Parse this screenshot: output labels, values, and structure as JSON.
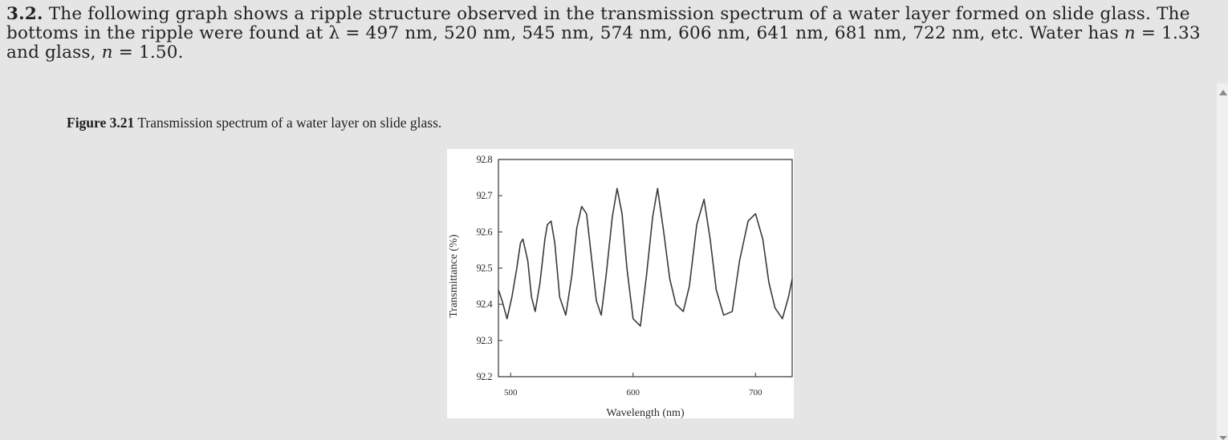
{
  "problem": {
    "number": "3.2.",
    "line1": " The following graph shows a ripple structure observed in the transmission spectrum of a water layer formed on slide glass. The",
    "line2a": "bottoms in the ripple were found at λ = 497 nm, 520 nm, 545 nm, 574 nm, 606 nm, 641 nm, 681 nm, 722 nm, etc. Water has ",
    "line2_var": "n",
    "line2b": " = 1.33",
    "line3a": "and glass, ",
    "line3_var": "n",
    "line3b": " = 1.50."
  },
  "caption": {
    "label": "Figure 3.21",
    "text": " Transmission spectrum of a water layer on slide glass."
  },
  "chart_data": {
    "type": "line",
    "xlabel": "Wavelength (nm)",
    "ylabel": "Transmittance (%)",
    "xlim": [
      490,
      730
    ],
    "ylim": [
      92.2,
      92.8
    ],
    "xticks": [
      "500",
      "600",
      "700"
    ],
    "xtick_values": [
      500,
      600,
      700
    ],
    "yticks": [
      "92.8",
      "92.7",
      "92.6",
      "92.5",
      "92.4",
      "92.3",
      "92.2"
    ],
    "ytick_values": [
      92.8,
      92.7,
      92.6,
      92.5,
      92.4,
      92.3,
      92.2
    ],
    "series": [
      {
        "x": [
          490,
          493,
          497,
          501,
          505,
          508,
          510,
          514,
          517,
          520,
          524,
          528,
          530,
          533,
          536,
          540,
          545,
          550,
          554,
          558,
          562,
          566,
          570,
          574,
          578,
          583,
          587,
          591,
          595,
          600,
          606,
          611,
          616,
          620,
          625,
          630,
          635,
          641,
          646,
          652,
          658,
          663,
          668,
          674,
          681,
          687,
          694,
          700,
          706,
          711,
          716,
          722,
          727,
          730
        ],
        "y": [
          92.44,
          92.41,
          92.36,
          92.42,
          92.5,
          92.57,
          92.58,
          92.52,
          92.42,
          92.38,
          92.46,
          92.58,
          92.62,
          92.63,
          92.57,
          92.42,
          92.37,
          92.48,
          92.61,
          92.67,
          92.65,
          92.53,
          92.41,
          92.37,
          92.48,
          92.64,
          92.72,
          92.65,
          92.5,
          92.36,
          92.34,
          92.48,
          92.64,
          92.72,
          92.6,
          92.47,
          92.4,
          92.38,
          92.45,
          92.62,
          92.69,
          92.58,
          92.44,
          92.37,
          92.38,
          92.52,
          92.63,
          92.65,
          92.58,
          92.46,
          92.39,
          92.36,
          92.42,
          92.47
        ]
      }
    ]
  }
}
